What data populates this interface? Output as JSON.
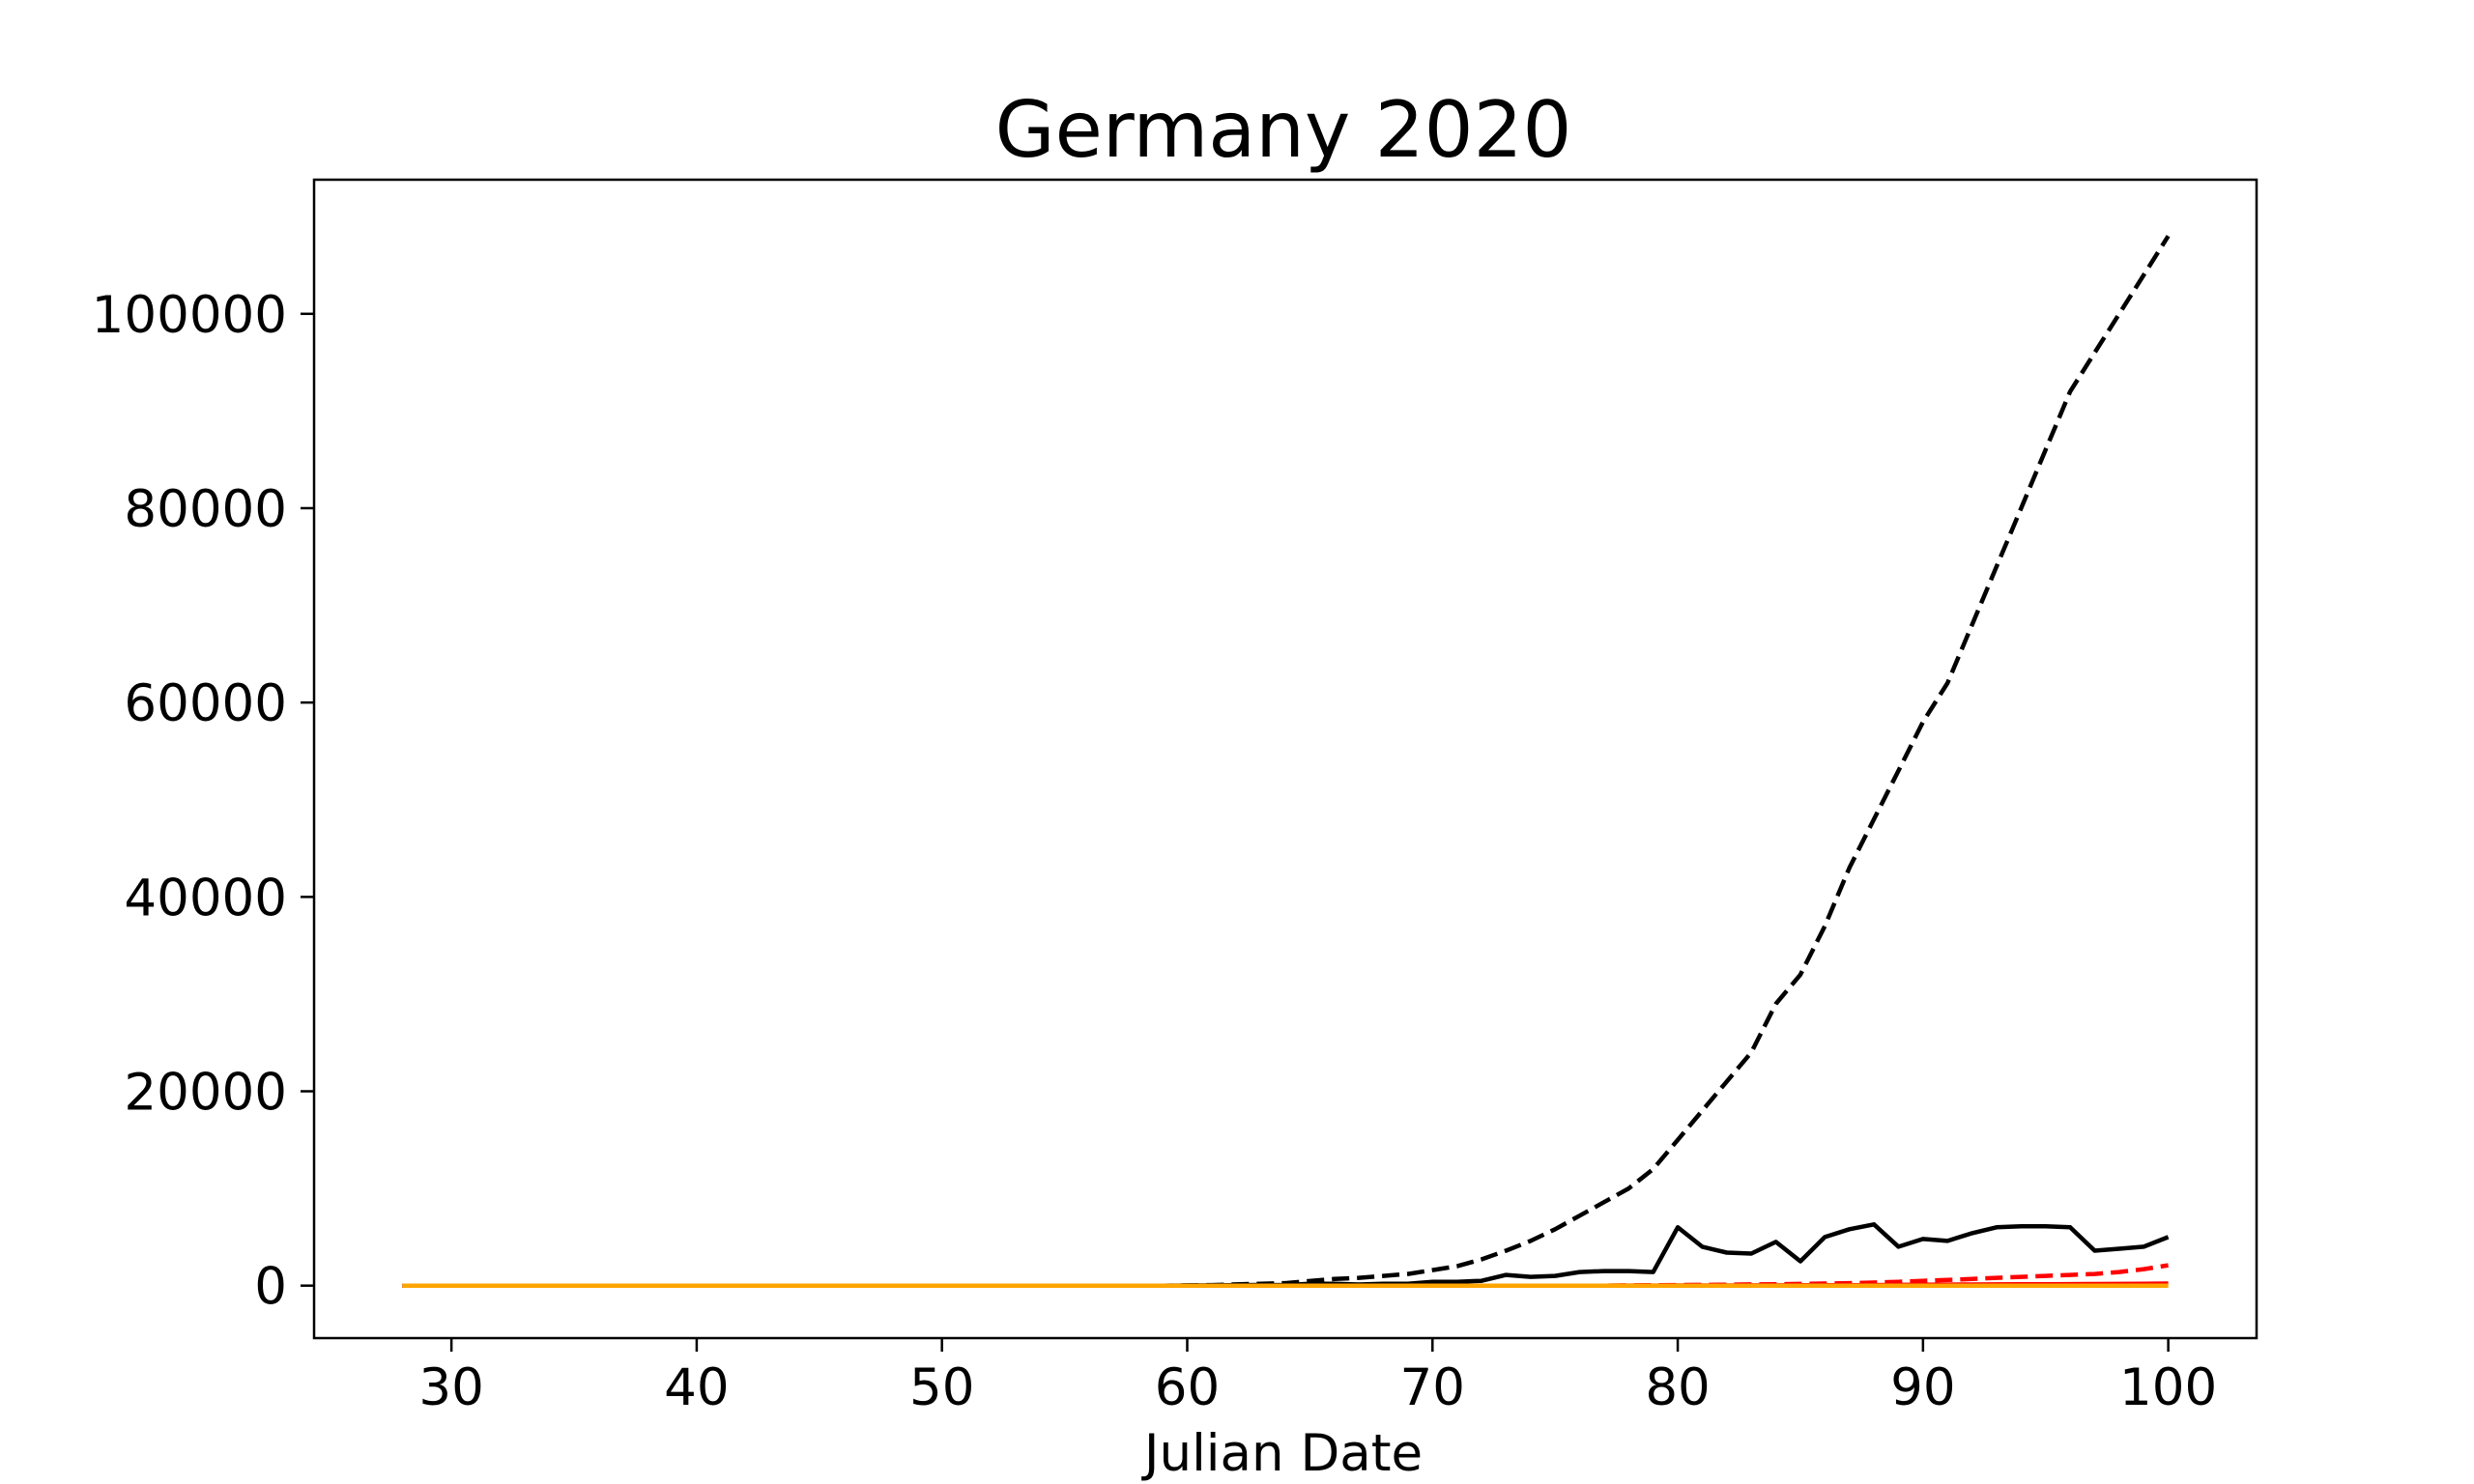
{
  "chart_data": {
    "type": "line",
    "title": "Germany 2020",
    "xlabel": "Julian Date",
    "ylabel": "",
    "xlim": [
      24.4,
      103.6
    ],
    "ylim": [
      -5400,
      113800
    ],
    "x_ticks": [
      30,
      40,
      50,
      60,
      70,
      80,
      90,
      100
    ],
    "y_ticks": [
      0,
      20000,
      40000,
      60000,
      80000,
      100000
    ],
    "grid": false,
    "legend": "none",
    "x": [
      28,
      29,
      30,
      31,
      32,
      33,
      34,
      35,
      36,
      37,
      38,
      39,
      40,
      41,
      42,
      43,
      44,
      45,
      46,
      47,
      48,
      49,
      50,
      51,
      52,
      53,
      54,
      55,
      56,
      57,
      58,
      59,
      60,
      61,
      62,
      63,
      64,
      65,
      66,
      67,
      68,
      69,
      70,
      71,
      72,
      73,
      74,
      75,
      76,
      77,
      78,
      79,
      80,
      81,
      82,
      83,
      84,
      85,
      86,
      87,
      88,
      89,
      90,
      91,
      92,
      93,
      94,
      95,
      96,
      97,
      98,
      99,
      100
    ],
    "series": [
      {
        "color": "#000000",
        "dash": "dashed",
        "values": [
          0,
          0,
          0,
          0,
          0,
          0,
          0,
          0,
          0,
          0,
          0,
          0,
          0,
          0,
          0,
          0,
          0,
          0,
          0,
          0,
          0,
          0,
          0,
          0,
          0,
          0,
          0,
          0,
          0,
          0,
          0,
          0,
          30,
          60,
          130,
          200,
          260,
          480,
          680,
          800,
          1000,
          1200,
          1600,
          2000,
          2700,
          3600,
          4600,
          5800,
          7200,
          8600,
          10000,
          12000,
          15000,
          18000,
          21000,
          24000,
          29000,
          32000,
          37000,
          43000,
          48000,
          53000,
          58000,
          62000,
          68000,
          74000,
          80000,
          86000,
          92000,
          96000,
          100000,
          104000,
          108000
        ]
      },
      {
        "color": "#000000",
        "dash": "solid",
        "values": [
          0,
          0,
          0,
          0,
          0,
          0,
          0,
          0,
          0,
          0,
          0,
          0,
          0,
          0,
          0,
          0,
          0,
          0,
          0,
          0,
          0,
          0,
          0,
          0,
          0,
          0,
          0,
          0,
          0,
          0,
          0,
          0,
          20,
          30,
          60,
          70,
          60,
          200,
          200,
          120,
          200,
          200,
          400,
          400,
          500,
          1100,
          900,
          1000,
          1400,
          1500,
          1500,
          1400,
          6000,
          4000,
          3400,
          3300,
          4500,
          2500,
          5000,
          5800,
          6300,
          4000,
          4800,
          4600,
          5400,
          6000,
          6100,
          6100,
          6000,
          3600,
          3800,
          4000,
          5000
        ]
      },
      {
        "color": "#ff0000",
        "dash": "dashed",
        "values": [
          0,
          0,
          0,
          0,
          0,
          0,
          0,
          0,
          0,
          0,
          0,
          0,
          0,
          0,
          0,
          0,
          0,
          0,
          0,
          0,
          0,
          0,
          0,
          0,
          0,
          0,
          0,
          0,
          0,
          0,
          0,
          0,
          0,
          0,
          0,
          0,
          0,
          0,
          0,
          0,
          0,
          0,
          0,
          0,
          0,
          0,
          0,
          0,
          0,
          0,
          30,
          40,
          60,
          80,
          100,
          130,
          150,
          180,
          220,
          260,
          320,
          400,
          500,
          580,
          680,
          800,
          900,
          1000,
          1100,
          1200,
          1400,
          1700,
          2100
        ]
      },
      {
        "color": "#ff0000",
        "dash": "solid",
        "values": [
          0,
          0,
          0,
          0,
          0,
          0,
          0,
          0,
          0,
          0,
          0,
          0,
          0,
          0,
          0,
          0,
          0,
          0,
          0,
          0,
          0,
          0,
          0,
          0,
          0,
          0,
          0,
          0,
          0,
          0,
          0,
          0,
          0,
          0,
          0,
          0,
          0,
          0,
          0,
          0,
          0,
          0,
          0,
          0,
          0,
          0,
          0,
          0,
          0,
          0,
          10,
          10,
          20,
          20,
          20,
          30,
          30,
          40,
          40,
          50,
          60,
          80,
          100,
          110,
          120,
          130,
          140,
          150,
          160,
          170,
          180,
          200,
          220
        ]
      },
      {
        "color": "#ffa500",
        "dash": "solid",
        "values": [
          0,
          0,
          0,
          0,
          0,
          0,
          0,
          0,
          0,
          0,
          0,
          0,
          0,
          0,
          0,
          0,
          0,
          0,
          0,
          0,
          0,
          0,
          0,
          0,
          0,
          0,
          0,
          0,
          0,
          0,
          0,
          0,
          0,
          0,
          0,
          0,
          0,
          0,
          0,
          0,
          0,
          0,
          0,
          0,
          0,
          0,
          0,
          0,
          0,
          0,
          0,
          0,
          0,
          0,
          0,
          0,
          0,
          0,
          0,
          0,
          0,
          0,
          0,
          0,
          0,
          0,
          0,
          0,
          0,
          0,
          0,
          0,
          0
        ]
      }
    ]
  }
}
